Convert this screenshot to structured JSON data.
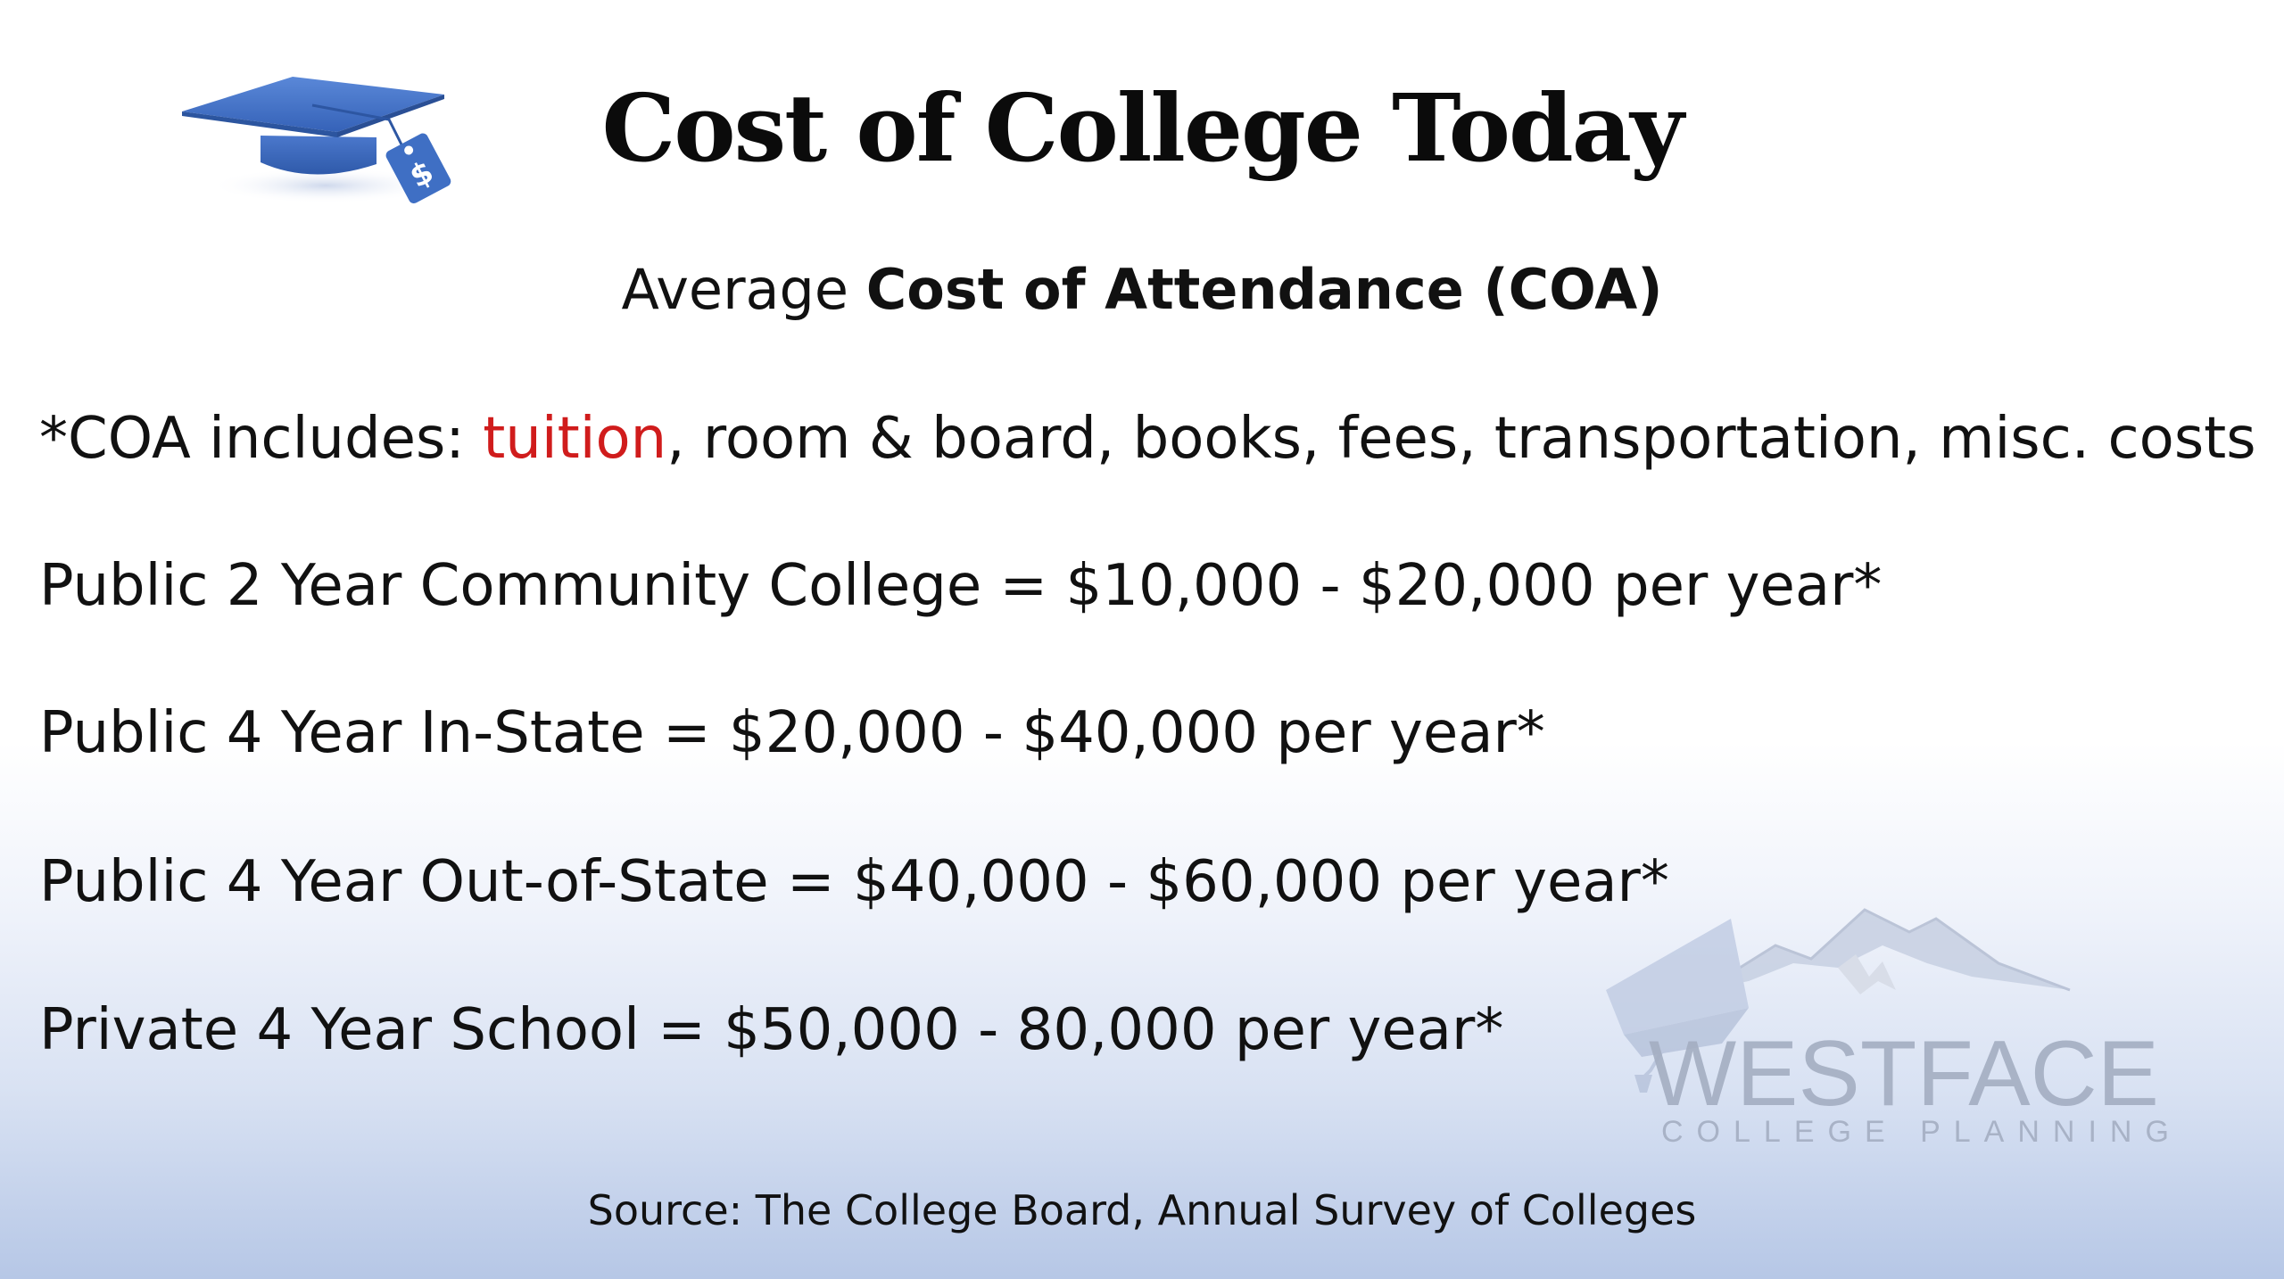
{
  "slide": {
    "title": "Cost of College Today",
    "subtitle_prefix": "Average ",
    "subtitle_strong": "Cost of Attendance (COA)",
    "coa_prefix": "*COA includes: ",
    "coa_highlight": "tuition",
    "coa_rest": ", room & board, books, fees, transportation, misc. costs",
    "cost_lines": [
      "Public 2 Year Community College = $10,000 - $20,000 per year*",
      "Public 4 Year In-State = $20,000 - $40,000 per year*",
      "Public 4 Year Out-of-State = $40,000 - $60,000 per year*",
      "Private 4 Year School = $50,000 - 80,000 per year*"
    ],
    "source": "Source: The College Board, Annual Survey of Colleges"
  },
  "watermark": {
    "name": "WESTFACE",
    "tagline": "COLLEGE PLANNING"
  },
  "icons": {
    "title_icon": "graduation-cap-price-tag-icon",
    "price_tag_symbol": "$"
  },
  "colors": {
    "accent_red": "#d01c1c",
    "cap_blue": "#3f6fc4",
    "watermark_gray": "#a4aec2",
    "gradient_bottom": "#b6c7e6"
  }
}
